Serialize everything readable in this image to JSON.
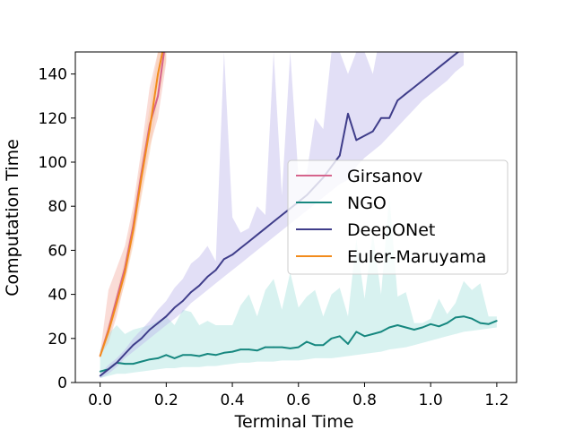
{
  "chart_data": {
    "type": "line",
    "xlabel": "Terminal Time",
    "ylabel": "Computation Time",
    "xlim": [
      -0.075,
      1.26
    ],
    "ylim": [
      0,
      150
    ],
    "xticks": [
      0.0,
      0.2,
      0.4,
      0.6,
      0.8,
      1.0,
      1.2
    ],
    "xtick_labels": [
      "0.0",
      "0.2",
      "0.4",
      "0.6",
      "0.8",
      "1.0",
      "1.2"
    ],
    "yticks": [
      0,
      20,
      40,
      60,
      80,
      100,
      120,
      140
    ],
    "ytick_labels": [
      "0",
      "20",
      "40",
      "60",
      "80",
      "100",
      "120",
      "140"
    ],
    "grid": false,
    "legend_position": "center-right",
    "series": [
      {
        "name": "Girsanov",
        "color": "#d6648c",
        "band_color": "#f4b2a6",
        "x": [
          0.0,
          0.025,
          0.05,
          0.075,
          0.1,
          0.125,
          0.15,
          0.175,
          0.2
        ],
        "y": [
          12,
          24,
          38,
          52,
          71,
          95,
          117,
          130,
          157
        ],
        "lower": [
          12,
          18,
          30,
          46,
          64,
          86,
          107,
          120,
          145
        ],
        "upper": [
          13,
          42,
          52,
          62,
          80,
          106,
          134,
          150,
          175
        ]
      },
      {
        "name": "NGO",
        "color": "#16877f",
        "band_color": "#a8e3de",
        "x": [
          0.0,
          0.025,
          0.05,
          0.075,
          0.1,
          0.125,
          0.15,
          0.175,
          0.2,
          0.225,
          0.25,
          0.275,
          0.3,
          0.325,
          0.35,
          0.375,
          0.4,
          0.425,
          0.45,
          0.475,
          0.5,
          0.525,
          0.55,
          0.575,
          0.6,
          0.625,
          0.65,
          0.675,
          0.7,
          0.725,
          0.75,
          0.775,
          0.8,
          0.825,
          0.85,
          0.875,
          0.9,
          0.925,
          0.95,
          0.975,
          1.0,
          1.025,
          1.05,
          1.075,
          1.1,
          1.125,
          1.15,
          1.175,
          1.2
        ],
        "y": [
          5,
          6,
          9,
          8.5,
          8.5,
          9.5,
          10.5,
          11,
          12.5,
          11,
          12.5,
          12.5,
          12,
          13,
          12.5,
          13.5,
          14,
          15,
          15,
          14.5,
          16,
          16,
          16,
          15.5,
          16,
          18.5,
          17,
          17,
          20,
          21,
          17.5,
          23,
          21,
          22,
          23,
          25,
          26,
          25,
          24,
          25,
          26.5,
          25.5,
          27,
          29.5,
          30,
          29,
          27,
          26.5,
          28
        ],
        "lower": [
          2,
          3,
          4,
          4,
          4.5,
          5,
          5.5,
          6,
          6.5,
          6.5,
          7,
          7,
          7,
          7.5,
          7.5,
          8,
          8.5,
          9,
          9,
          9.5,
          9.5,
          9.5,
          10,
          10,
          10,
          10.5,
          11,
          11,
          11,
          11.5,
          12,
          12.5,
          13,
          13.5,
          14,
          15,
          15.5,
          16,
          17,
          18,
          19,
          20,
          21,
          22,
          23,
          23.5,
          24,
          24.5,
          25
        ],
        "upper": [
          15,
          22,
          26,
          22,
          24,
          25,
          26,
          28,
          30,
          26,
          33,
          32,
          26,
          28,
          26,
          26,
          26,
          35,
          40,
          30,
          42,
          47,
          33,
          50,
          34,
          39,
          42,
          30,
          40,
          43,
          30,
          65,
          38,
          68,
          40,
          85,
          39,
          41,
          27,
          27,
          29,
          38,
          31,
          36,
          46,
          42,
          45,
          30,
          30
        ]
      },
      {
        "name": "DeepONet",
        "color": "#3f3d8a",
        "band_color": "#bfb8ea",
        "x": [
          0.0,
          0.025,
          0.05,
          0.075,
          0.1,
          0.125,
          0.15,
          0.175,
          0.2,
          0.225,
          0.25,
          0.275,
          0.3,
          0.325,
          0.35,
          0.375,
          0.4,
          0.425,
          0.45,
          0.475,
          0.5,
          0.525,
          0.55,
          0.575,
          0.6,
          0.625,
          0.65,
          0.675,
          0.7,
          0.725,
          0.75,
          0.775,
          0.8,
          0.825,
          0.85,
          0.875,
          0.9,
          0.925,
          0.95,
          0.975,
          1.0,
          1.025,
          1.05,
          1.075,
          1.1
        ],
        "y": [
          3,
          6,
          9,
          13,
          17,
          20,
          24,
          27,
          30,
          34,
          37,
          41,
          44,
          48,
          51,
          56,
          58,
          61,
          64,
          67,
          70,
          73,
          76,
          79,
          82,
          85,
          89,
          93,
          98,
          103,
          122,
          110,
          112,
          114,
          120,
          120,
          128,
          131,
          134,
          137,
          140,
          143,
          146,
          149,
          152
        ],
        "lower": [
          2,
          4,
          7,
          11,
          14,
          17,
          20,
          23,
          26,
          29,
          32,
          36,
          39,
          42,
          45,
          48,
          51,
          54,
          57,
          60,
          63,
          66,
          69,
          72,
          75,
          78,
          81,
          84,
          87,
          90,
          92,
          98,
          102,
          105,
          108,
          112,
          116,
          120,
          124,
          128,
          131,
          134,
          137,
          141,
          144
        ],
        "upper": [
          4,
          8,
          11,
          15,
          20,
          24,
          28,
          33,
          37,
          43,
          47,
          54,
          57,
          62,
          55,
          150,
          75,
          68,
          70,
          80,
          76,
          150,
          85,
          150,
          93,
          95,
          120,
          115,
          150,
          150,
          140,
          150,
          150,
          140,
          160,
          150,
          150,
          150,
          150,
          150,
          150,
          150,
          150,
          155,
          158
        ]
      },
      {
        "name": "Euler-Maruyama",
        "color": "#f28b1c",
        "band_color": "#f9c9a6",
        "x": [
          0.0,
          0.025,
          0.05,
          0.075,
          0.1,
          0.125,
          0.15,
          0.175,
          0.2
        ],
        "y": [
          12,
          23,
          36,
          50,
          69,
          93,
          115,
          140,
          158
        ],
        "lower": [
          11,
          20,
          32,
          45,
          62,
          84,
          104,
          128,
          146
        ],
        "upper": [
          13,
          27,
          41,
          56,
          77,
          101,
          125,
          150,
          170
        ]
      }
    ]
  }
}
